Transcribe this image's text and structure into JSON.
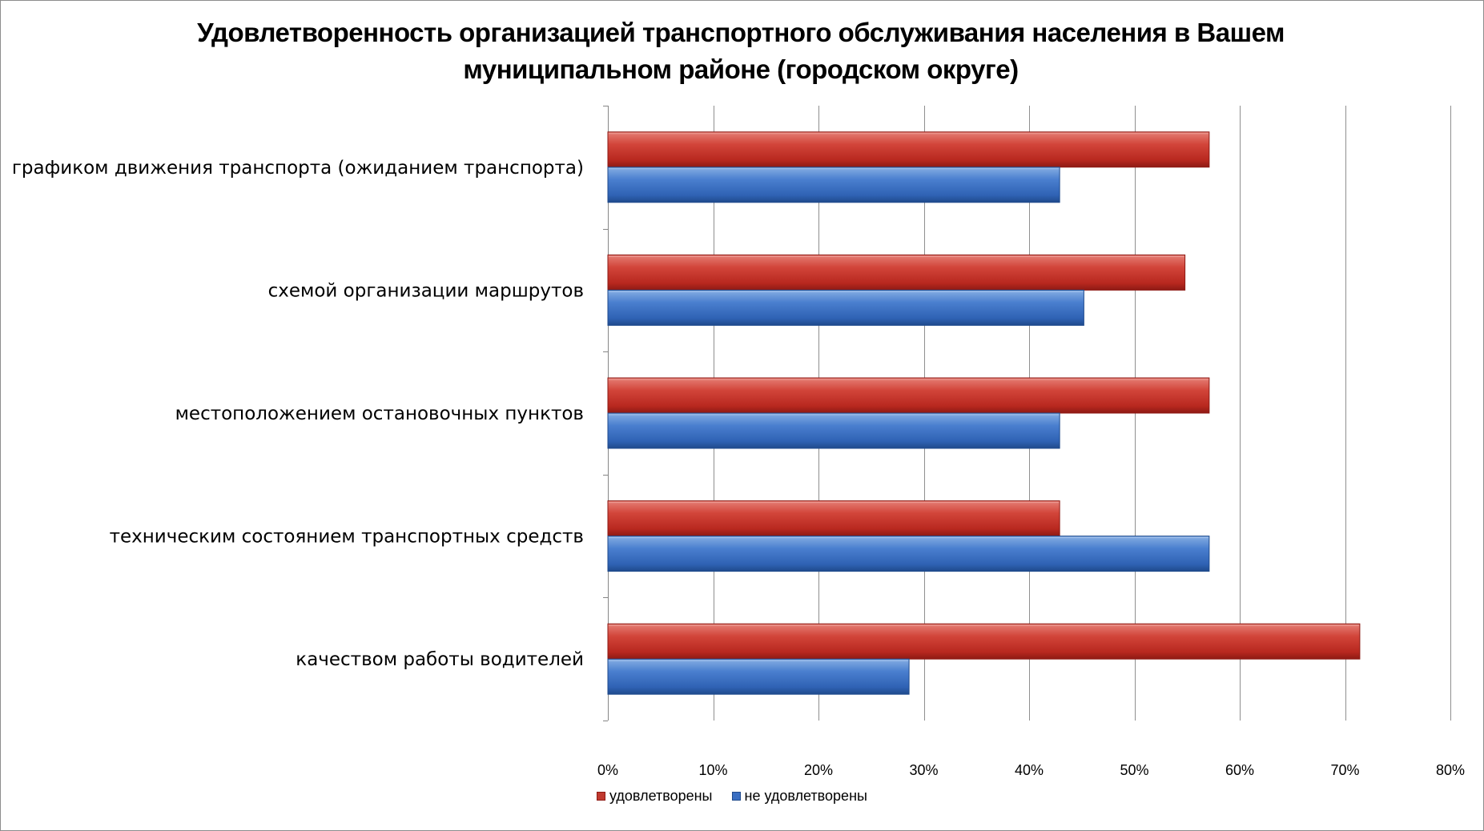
{
  "chart_data": {
    "type": "bar",
    "orientation": "horizontal",
    "title": "Удовлетворенность организацией транспортного обслуживания населения в Вашем муниципальном районе (городском округе)",
    "categories": [
      "графиком движения транспорта (ожиданием транспорта)",
      "схемой организации маршрутов",
      "местоположением остановочных пунктов",
      "техническим состоянием транспортных средств",
      "качеством работы водителей"
    ],
    "series": [
      {
        "name": "удовлетворены",
        "color": "#c0392f",
        "values": [
          57.1,
          54.8,
          57.1,
          42.9,
          71.4
        ]
      },
      {
        "name": "не удовлетворены",
        "color": "#3a6fc2",
        "values": [
          42.9,
          45.2,
          42.9,
          57.1,
          28.6
        ]
      }
    ],
    "xlim": [
      0,
      80
    ],
    "xticks": [
      0,
      10,
      20,
      30,
      40,
      50,
      60,
      70,
      80
    ],
    "tick_labels": [
      "0%",
      "10%",
      "20%",
      "30%",
      "40%",
      "50%",
      "60%",
      "70%",
      "80%"
    ],
    "grid": true,
    "legend_position": "bottom"
  }
}
